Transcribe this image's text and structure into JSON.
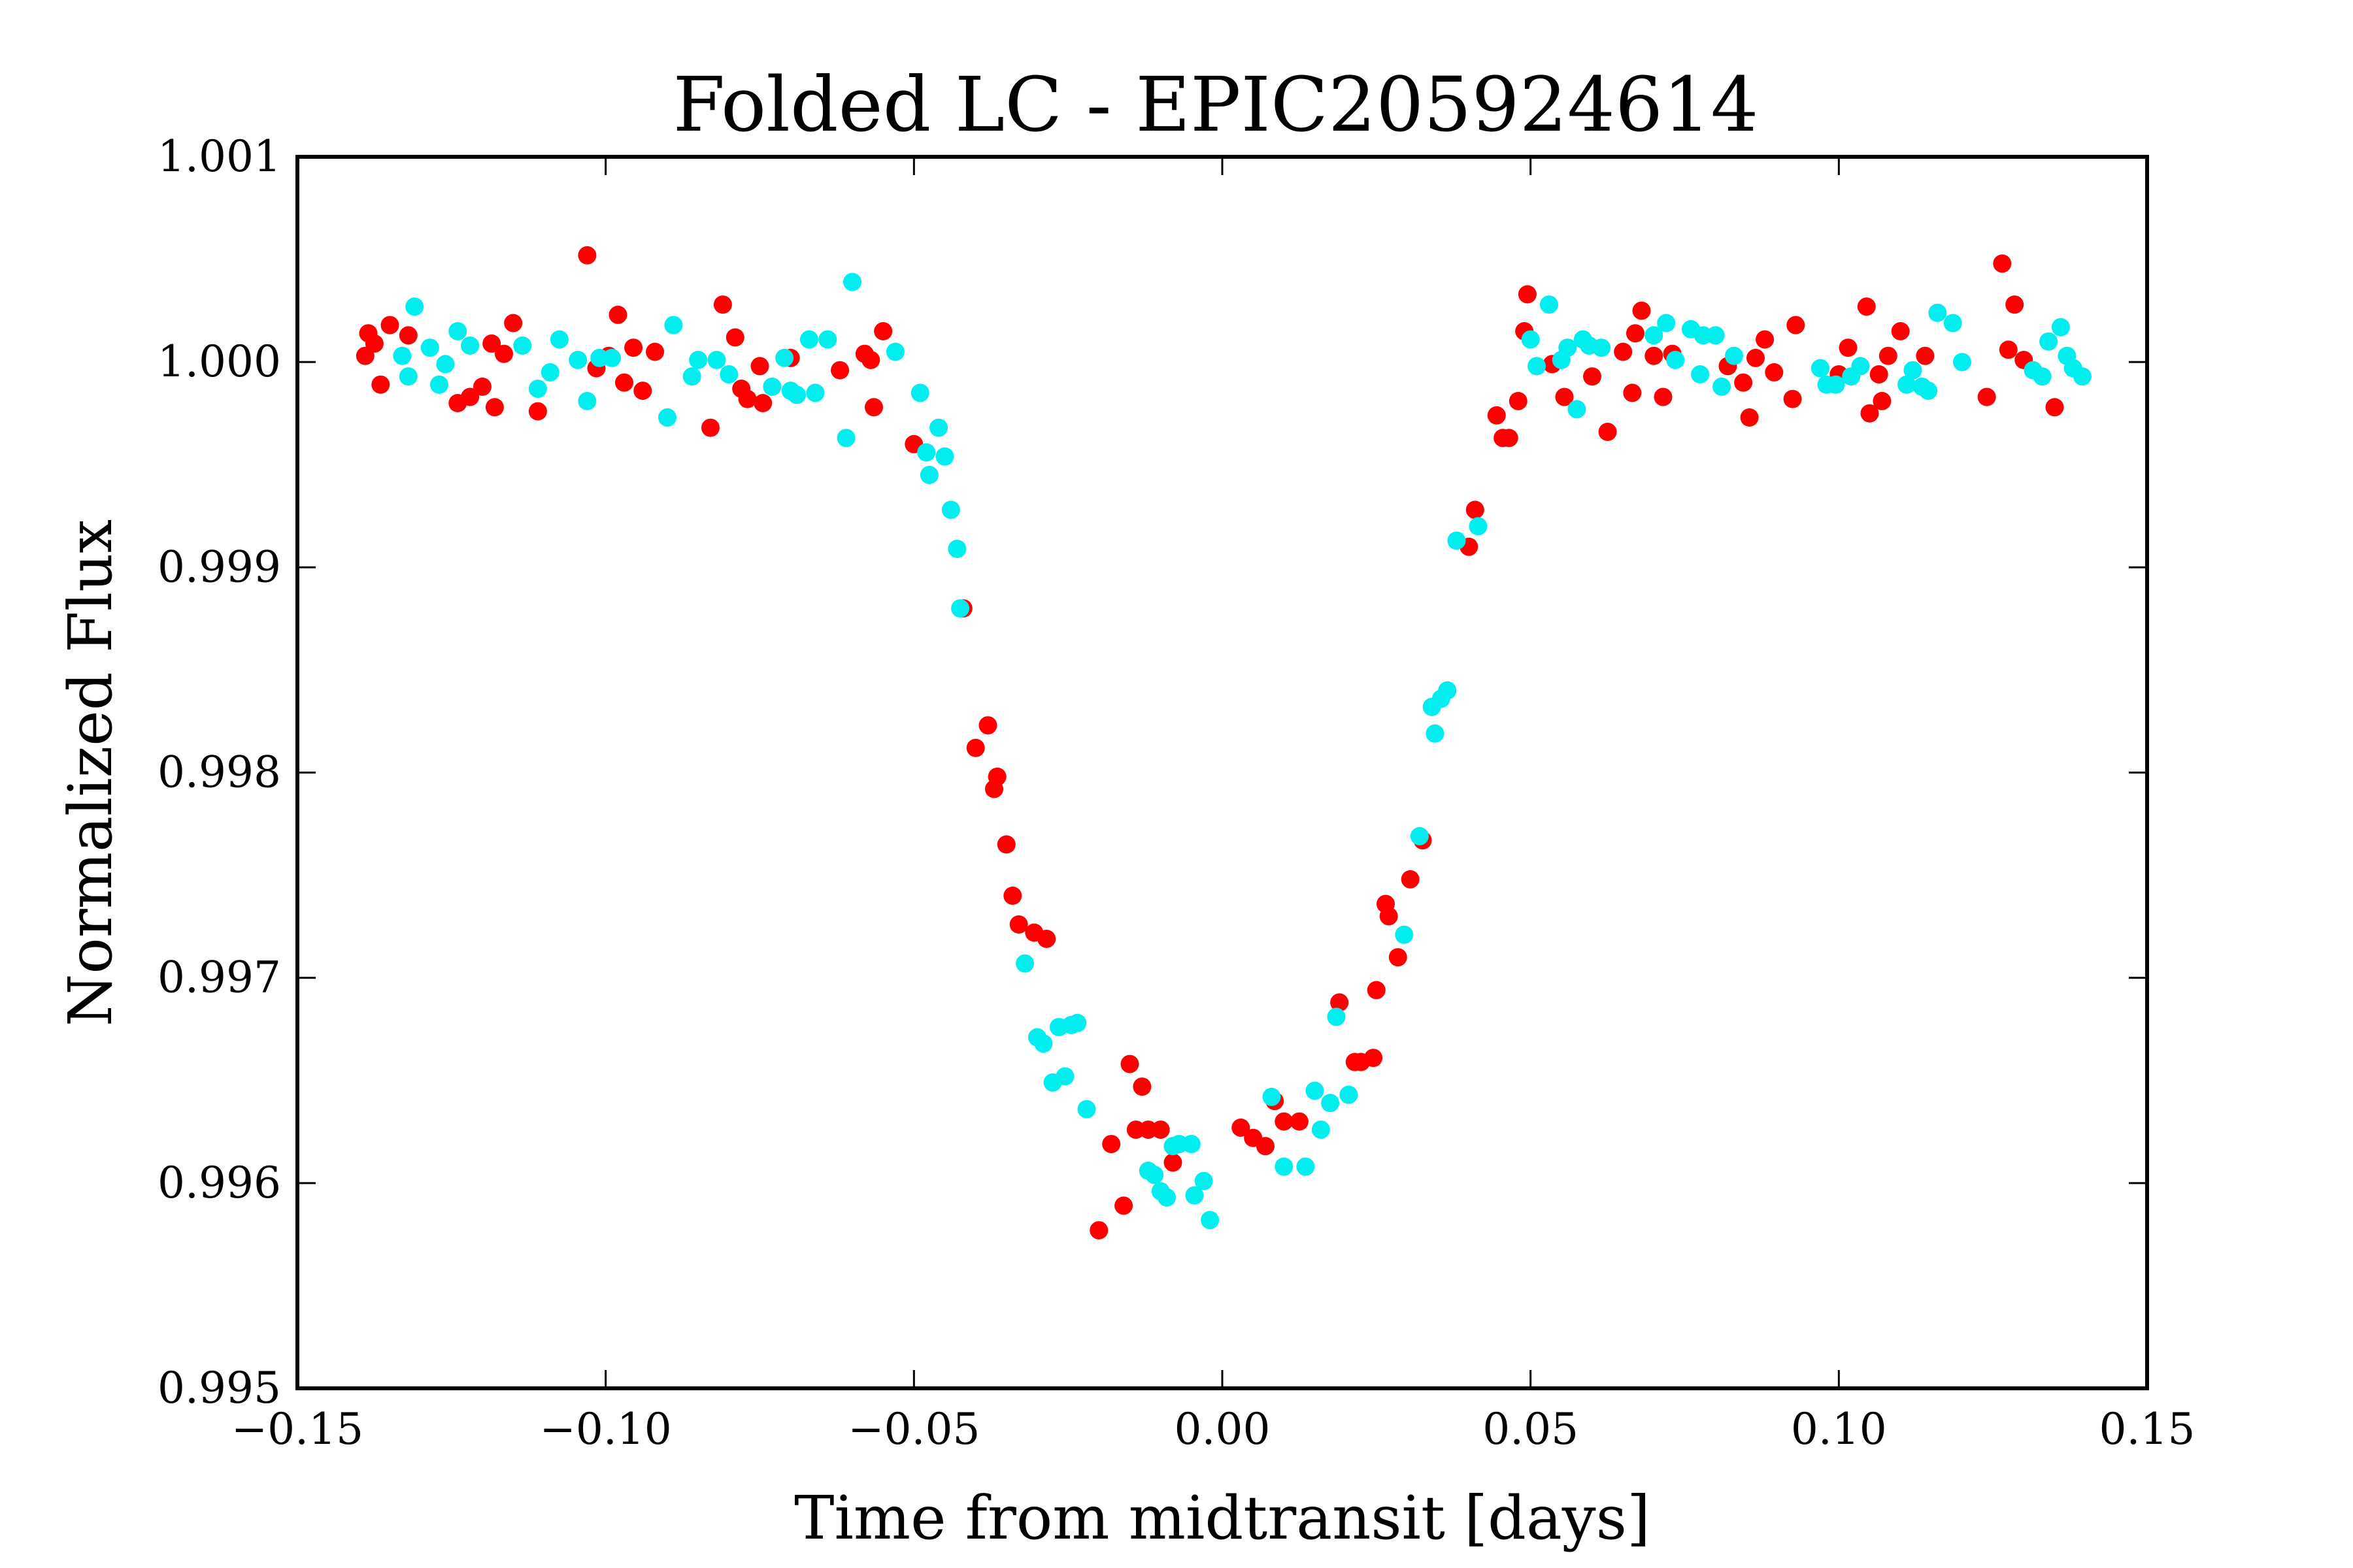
{
  "chart_data": {
    "type": "scatter",
    "title": "Folded LC - EPIC205924614",
    "xlabel": "Time from midtransit [days]",
    "ylabel": "Normalized Flux",
    "xlim": [
      -0.15,
      0.15
    ],
    "ylim": [
      0.995,
      1.001
    ],
    "xticks": [
      "−0.15",
      "−0.10",
      "−0.05",
      "0.00",
      "0.05",
      "0.10",
      "0.15"
    ],
    "xtick_values": [
      -0.15,
      -0.1,
      -0.05,
      0.0,
      0.05,
      0.1,
      0.15
    ],
    "yticks": [
      "0.995",
      "0.996",
      "0.997",
      "0.998",
      "0.999",
      "1.000",
      "1.001"
    ],
    "ytick_values": [
      0.995,
      0.996,
      0.997,
      0.998,
      0.999,
      1.0,
      1.001
    ],
    "grid": false,
    "series": [
      {
        "color": "#ff0000",
        "points": [
          [
            -0.139,
            1.00003
          ],
          [
            -0.1385,
            1.00014
          ],
          [
            -0.1375,
            1.00009
          ],
          [
            -0.1365,
            0.99989
          ],
          [
            -0.135,
            1.00018
          ],
          [
            -0.132,
            1.00013
          ],
          [
            -0.124,
            0.9998
          ],
          [
            -0.122,
            0.99983
          ],
          [
            -0.12,
            0.99988
          ],
          [
            -0.1185,
            1.00009
          ],
          [
            -0.118,
            0.99978
          ],
          [
            -0.1165,
            1.00004
          ],
          [
            -0.115,
            1.00019
          ],
          [
            -0.111,
            0.99976
          ],
          [
            -0.103,
            1.00052
          ],
          [
            -0.1015,
            0.99997
          ],
          [
            -0.0995,
            1.00003
          ],
          [
            -0.098,
            1.00023
          ],
          [
            -0.097,
            0.9999
          ],
          [
            -0.0955,
            1.00007
          ],
          [
            -0.094,
            0.99986
          ],
          [
            -0.092,
            1.00005
          ],
          [
            -0.083,
            0.99968
          ],
          [
            -0.081,
            1.00028
          ],
          [
            -0.079,
            1.00012
          ],
          [
            -0.078,
            0.99987
          ],
          [
            -0.077,
            0.99982
          ],
          [
            -0.075,
            0.99998
          ],
          [
            -0.0745,
            0.9998
          ],
          [
            -0.07,
            1.00002
          ],
          [
            -0.062,
            0.99996
          ],
          [
            -0.058,
            1.00004
          ],
          [
            -0.057,
            1.00001
          ],
          [
            -0.0565,
            0.99978
          ],
          [
            -0.055,
            1.00015
          ],
          [
            -0.05,
            0.9996
          ],
          [
            -0.042,
            0.9988
          ],
          [
            -0.04,
            0.99812
          ],
          [
            -0.038,
            0.99823
          ],
          [
            -0.037,
            0.99792
          ],
          [
            -0.0365,
            0.99798
          ],
          [
            -0.035,
            0.99765
          ],
          [
            -0.034,
            0.9974
          ],
          [
            -0.033,
            0.99726
          ],
          [
            -0.0305,
            0.99722
          ],
          [
            -0.0285,
            0.99719
          ],
          [
            -0.018,
            0.99619
          ],
          [
            -0.016,
            0.99589
          ],
          [
            -0.015,
            0.99658
          ],
          [
            -0.014,
            0.99626
          ],
          [
            -0.013,
            0.99647
          ],
          [
            -0.012,
            0.99626
          ],
          [
            -0.01,
            0.99626
          ],
          [
            -0.008,
            0.9961
          ],
          [
            -0.02,
            0.99577
          ],
          [
            0.003,
            0.99627
          ],
          [
            0.005,
            0.99622
          ],
          [
            0.007,
            0.99618
          ],
          [
            0.0085,
            0.9964
          ],
          [
            0.01,
            0.9963
          ],
          [
            0.0125,
            0.9963
          ],
          [
            0.019,
            0.99688
          ],
          [
            0.0215,
            0.99659
          ],
          [
            0.0225,
            0.99659
          ],
          [
            0.0245,
            0.99661
          ],
          [
            0.025,
            0.99694
          ],
          [
            0.0265,
            0.99736
          ],
          [
            0.027,
            0.9973
          ],
          [
            0.0285,
            0.9971
          ],
          [
            0.0305,
            0.99748
          ],
          [
            0.0325,
            0.99767
          ],
          [
            0.04,
            0.9991
          ],
          [
            0.041,
            0.99928
          ],
          [
            0.0445,
            0.99974
          ],
          [
            0.0455,
            0.99963
          ],
          [
            0.0465,
            0.99963
          ],
          [
            0.048,
            0.99981
          ],
          [
            0.049,
            1.00015
          ],
          [
            0.0495,
            1.00033
          ],
          [
            0.0535,
            0.99999
          ],
          [
            0.0555,
            0.99983
          ],
          [
            0.06,
            0.99993
          ],
          [
            0.0625,
            0.99966
          ],
          [
            0.065,
            1.00005
          ],
          [
            0.0665,
            0.99985
          ],
          [
            0.067,
            1.00014
          ],
          [
            0.068,
            1.00025
          ],
          [
            0.07,
            1.00003
          ],
          [
            0.0715,
            0.99983
          ],
          [
            0.073,
            1.00004
          ],
          [
            0.082,
            0.99998
          ],
          [
            0.0845,
            0.9999
          ],
          [
            0.0855,
            0.99973
          ],
          [
            0.0865,
            1.00002
          ],
          [
            0.088,
            1.00011
          ],
          [
            0.0895,
            0.99995
          ],
          [
            0.0925,
            0.99982
          ],
          [
            0.093,
            1.00018
          ],
          [
            0.1,
            0.99994
          ],
          [
            0.1015,
            1.00007
          ],
          [
            0.1045,
            1.00027
          ],
          [
            0.105,
            0.99975
          ],
          [
            0.1065,
            0.99994
          ],
          [
            0.107,
            0.99981
          ],
          [
            0.108,
            1.00003
          ],
          [
            0.11,
            1.00015
          ],
          [
            0.114,
            1.00003
          ],
          [
            0.124,
            0.99983
          ],
          [
            0.1265,
            1.00048
          ],
          [
            0.1275,
            1.00006
          ],
          [
            0.1285,
            1.00028
          ],
          [
            0.13,
            1.00001
          ],
          [
            0.135,
            0.99978
          ]
        ]
      },
      {
        "color": "#00eeee",
        "points": [
          [
            -0.133,
            1.00003
          ],
          [
            -0.132,
            0.99993
          ],
          [
            -0.131,
            1.00027
          ],
          [
            -0.1285,
            1.00007
          ],
          [
            -0.127,
            0.99989
          ],
          [
            -0.126,
            0.99999
          ],
          [
            -0.124,
            1.00015
          ],
          [
            -0.122,
            1.00008
          ],
          [
            -0.1135,
            1.00008
          ],
          [
            -0.111,
            0.99987
          ],
          [
            -0.109,
            0.99995
          ],
          [
            -0.1075,
            1.00011
          ],
          [
            -0.1045,
            1.00001
          ],
          [
            -0.103,
            0.99981
          ],
          [
            -0.101,
            1.00002
          ],
          [
            -0.099,
            1.00002
          ],
          [
            -0.09,
            0.99973
          ],
          [
            -0.089,
            1.00018
          ],
          [
            -0.086,
            0.99993
          ],
          [
            -0.085,
            1.00001
          ],
          [
            -0.082,
            1.00001
          ],
          [
            -0.08,
            0.99994
          ],
          [
            -0.073,
            0.99988
          ],
          [
            -0.071,
            1.00002
          ],
          [
            -0.07,
            0.99986
          ],
          [
            -0.069,
            0.99984
          ],
          [
            -0.067,
            1.00011
          ],
          [
            -0.066,
            0.99985
          ],
          [
            -0.064,
            1.00011
          ],
          [
            -0.061,
            0.99963
          ],
          [
            -0.06,
            1.00039
          ],
          [
            -0.053,
            1.00005
          ],
          [
            -0.049,
            0.99985
          ],
          [
            -0.048,
            0.99956
          ],
          [
            -0.0475,
            0.99945
          ],
          [
            -0.046,
            0.99968
          ],
          [
            -0.045,
            0.99954
          ],
          [
            -0.044,
            0.99928
          ],
          [
            -0.043,
            0.99909
          ],
          [
            -0.0425,
            0.9988
          ],
          [
            -0.032,
            0.99707
          ],
          [
            -0.03,
            0.99671
          ],
          [
            -0.029,
            0.99668
          ],
          [
            -0.0275,
            0.99649
          ],
          [
            -0.0265,
            0.99676
          ],
          [
            -0.0255,
            0.99652
          ],
          [
            -0.0245,
            0.99677
          ],
          [
            -0.0235,
            0.99678
          ],
          [
            -0.022,
            0.99636
          ],
          [
            -0.012,
            0.99606
          ],
          [
            -0.011,
            0.99604
          ],
          [
            -0.01,
            0.99596
          ],
          [
            -0.009,
            0.99593
          ],
          [
            -0.008,
            0.99618
          ],
          [
            -0.007,
            0.99619
          ],
          [
            -0.005,
            0.99619
          ],
          [
            -0.0045,
            0.99594
          ],
          [
            -0.003,
            0.99601
          ],
          [
            -0.002,
            0.99582
          ],
          [
            0.008,
            0.99642
          ],
          [
            0.01,
            0.99608
          ],
          [
            0.0135,
            0.99608
          ],
          [
            0.015,
            0.99645
          ],
          [
            0.016,
            0.99626
          ],
          [
            0.0175,
            0.99639
          ],
          [
            0.0185,
            0.99681
          ],
          [
            0.0205,
            0.99643
          ],
          [
            0.0295,
            0.99721
          ],
          [
            0.032,
            0.99769
          ],
          [
            0.034,
            0.99832
          ],
          [
            0.0345,
            0.99819
          ],
          [
            0.0355,
            0.99836
          ],
          [
            0.0365,
            0.9984
          ],
          [
            0.038,
            0.99913
          ],
          [
            0.0415,
            0.9992
          ],
          [
            0.051,
            0.99998
          ],
          [
            0.05,
            1.00011
          ],
          [
            0.053,
            1.00028
          ],
          [
            0.055,
            1.00001
          ],
          [
            0.056,
            1.00007
          ],
          [
            0.0575,
            0.99977
          ],
          [
            0.0585,
            1.00011
          ],
          [
            0.0595,
            1.00008
          ],
          [
            0.0615,
            1.00007
          ],
          [
            0.07,
            1.00013
          ],
          [
            0.072,
            1.00019
          ],
          [
            0.0735,
            1.00001
          ],
          [
            0.076,
            1.00016
          ],
          [
            0.0775,
            0.99994
          ],
          [
            0.078,
            1.00013
          ],
          [
            0.08,
            1.00013
          ],
          [
            0.081,
            0.99988
          ],
          [
            0.083,
            1.00003
          ],
          [
            0.097,
            0.99997
          ],
          [
            0.098,
            0.99989
          ],
          [
            0.0995,
            0.99989
          ],
          [
            0.102,
            0.99993
          ],
          [
            0.1035,
            0.99998
          ],
          [
            0.111,
            0.99989
          ],
          [
            0.112,
            0.99996
          ],
          [
            0.1135,
            0.99988
          ],
          [
            0.1145,
            0.99986
          ],
          [
            0.116,
            1.00024
          ],
          [
            0.1185,
            1.00019
          ],
          [
            0.12,
            1.0
          ],
          [
            0.1315,
            0.99996
          ],
          [
            0.133,
            0.99993
          ],
          [
            0.134,
            1.0001
          ],
          [
            0.136,
            1.00017
          ],
          [
            0.137,
            1.00003
          ],
          [
            0.138,
            0.99997
          ],
          [
            0.1395,
            0.99993
          ]
        ]
      }
    ]
  }
}
